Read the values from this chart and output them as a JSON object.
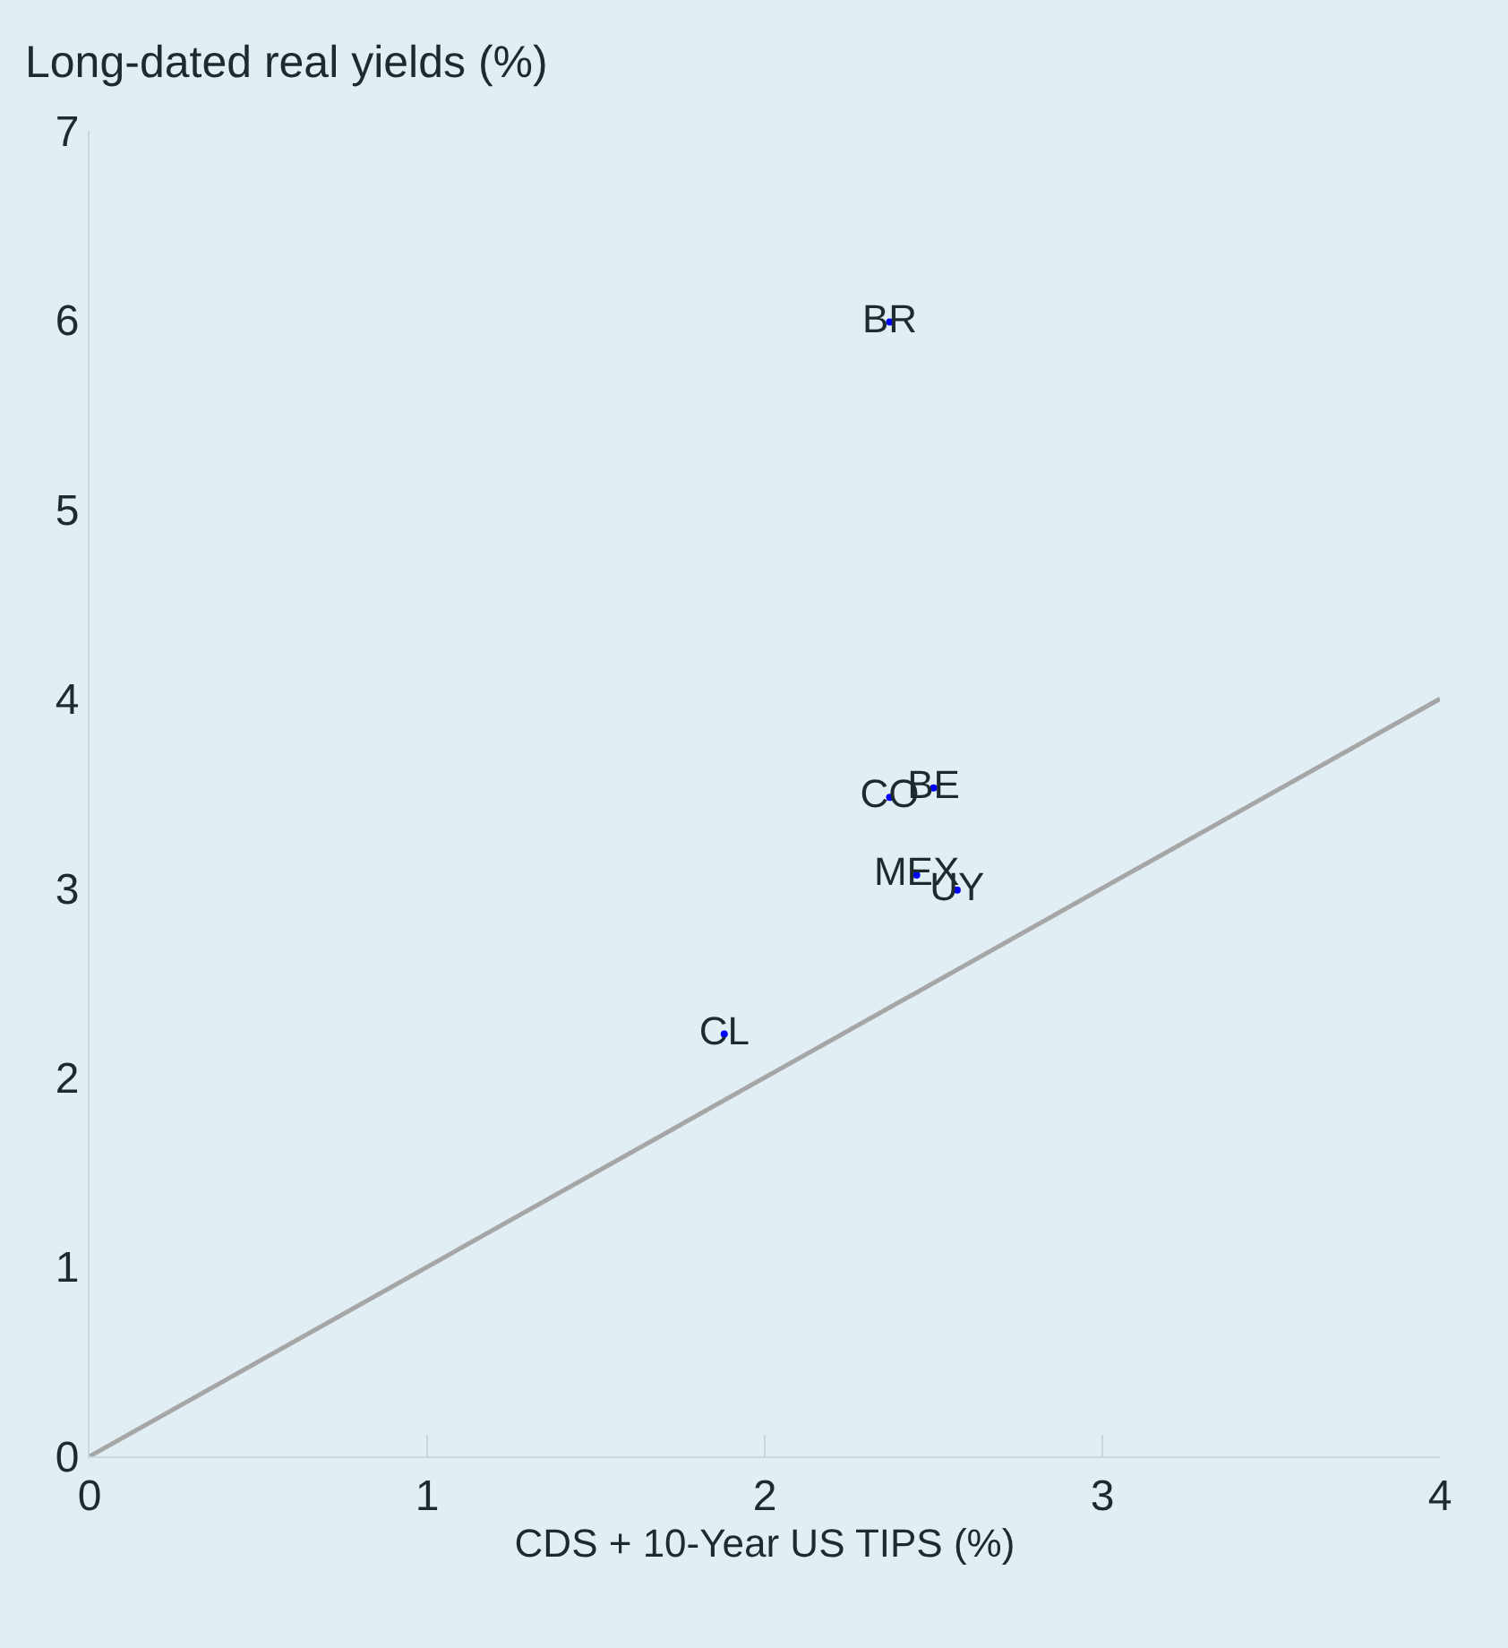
{
  "chart_data": {
    "type": "scatter",
    "ylabel": "Long-dated real yields (%)",
    "xlabel": "CDS + 10-Year US TIPS (%)",
    "series": [
      {
        "color": "#0000ff",
        "marker": "circle",
        "x": [
          2.37,
          2.5,
          2.37,
          2.45,
          2.57,
          1.88
        ],
        "values": [
          5.99,
          3.53,
          3.48,
          3.07,
          2.99,
          2.23
        ],
        "value_labels": [
          "BR",
          "BE",
          "CO",
          "MEX",
          "UY",
          "CL"
        ]
      },
      {
        "type": "line",
        "color": "#a6a6a6",
        "x": [
          0,
          4
        ],
        "values": [
          0,
          4
        ]
      }
    ],
    "xlim": [
      0,
      4
    ],
    "xticks": [
      0,
      1,
      2,
      3,
      4
    ],
    "ylim": [
      0,
      7
    ],
    "yticks": [
      0,
      1,
      2,
      3,
      4,
      5,
      6,
      7
    ],
    "grid": false
  }
}
